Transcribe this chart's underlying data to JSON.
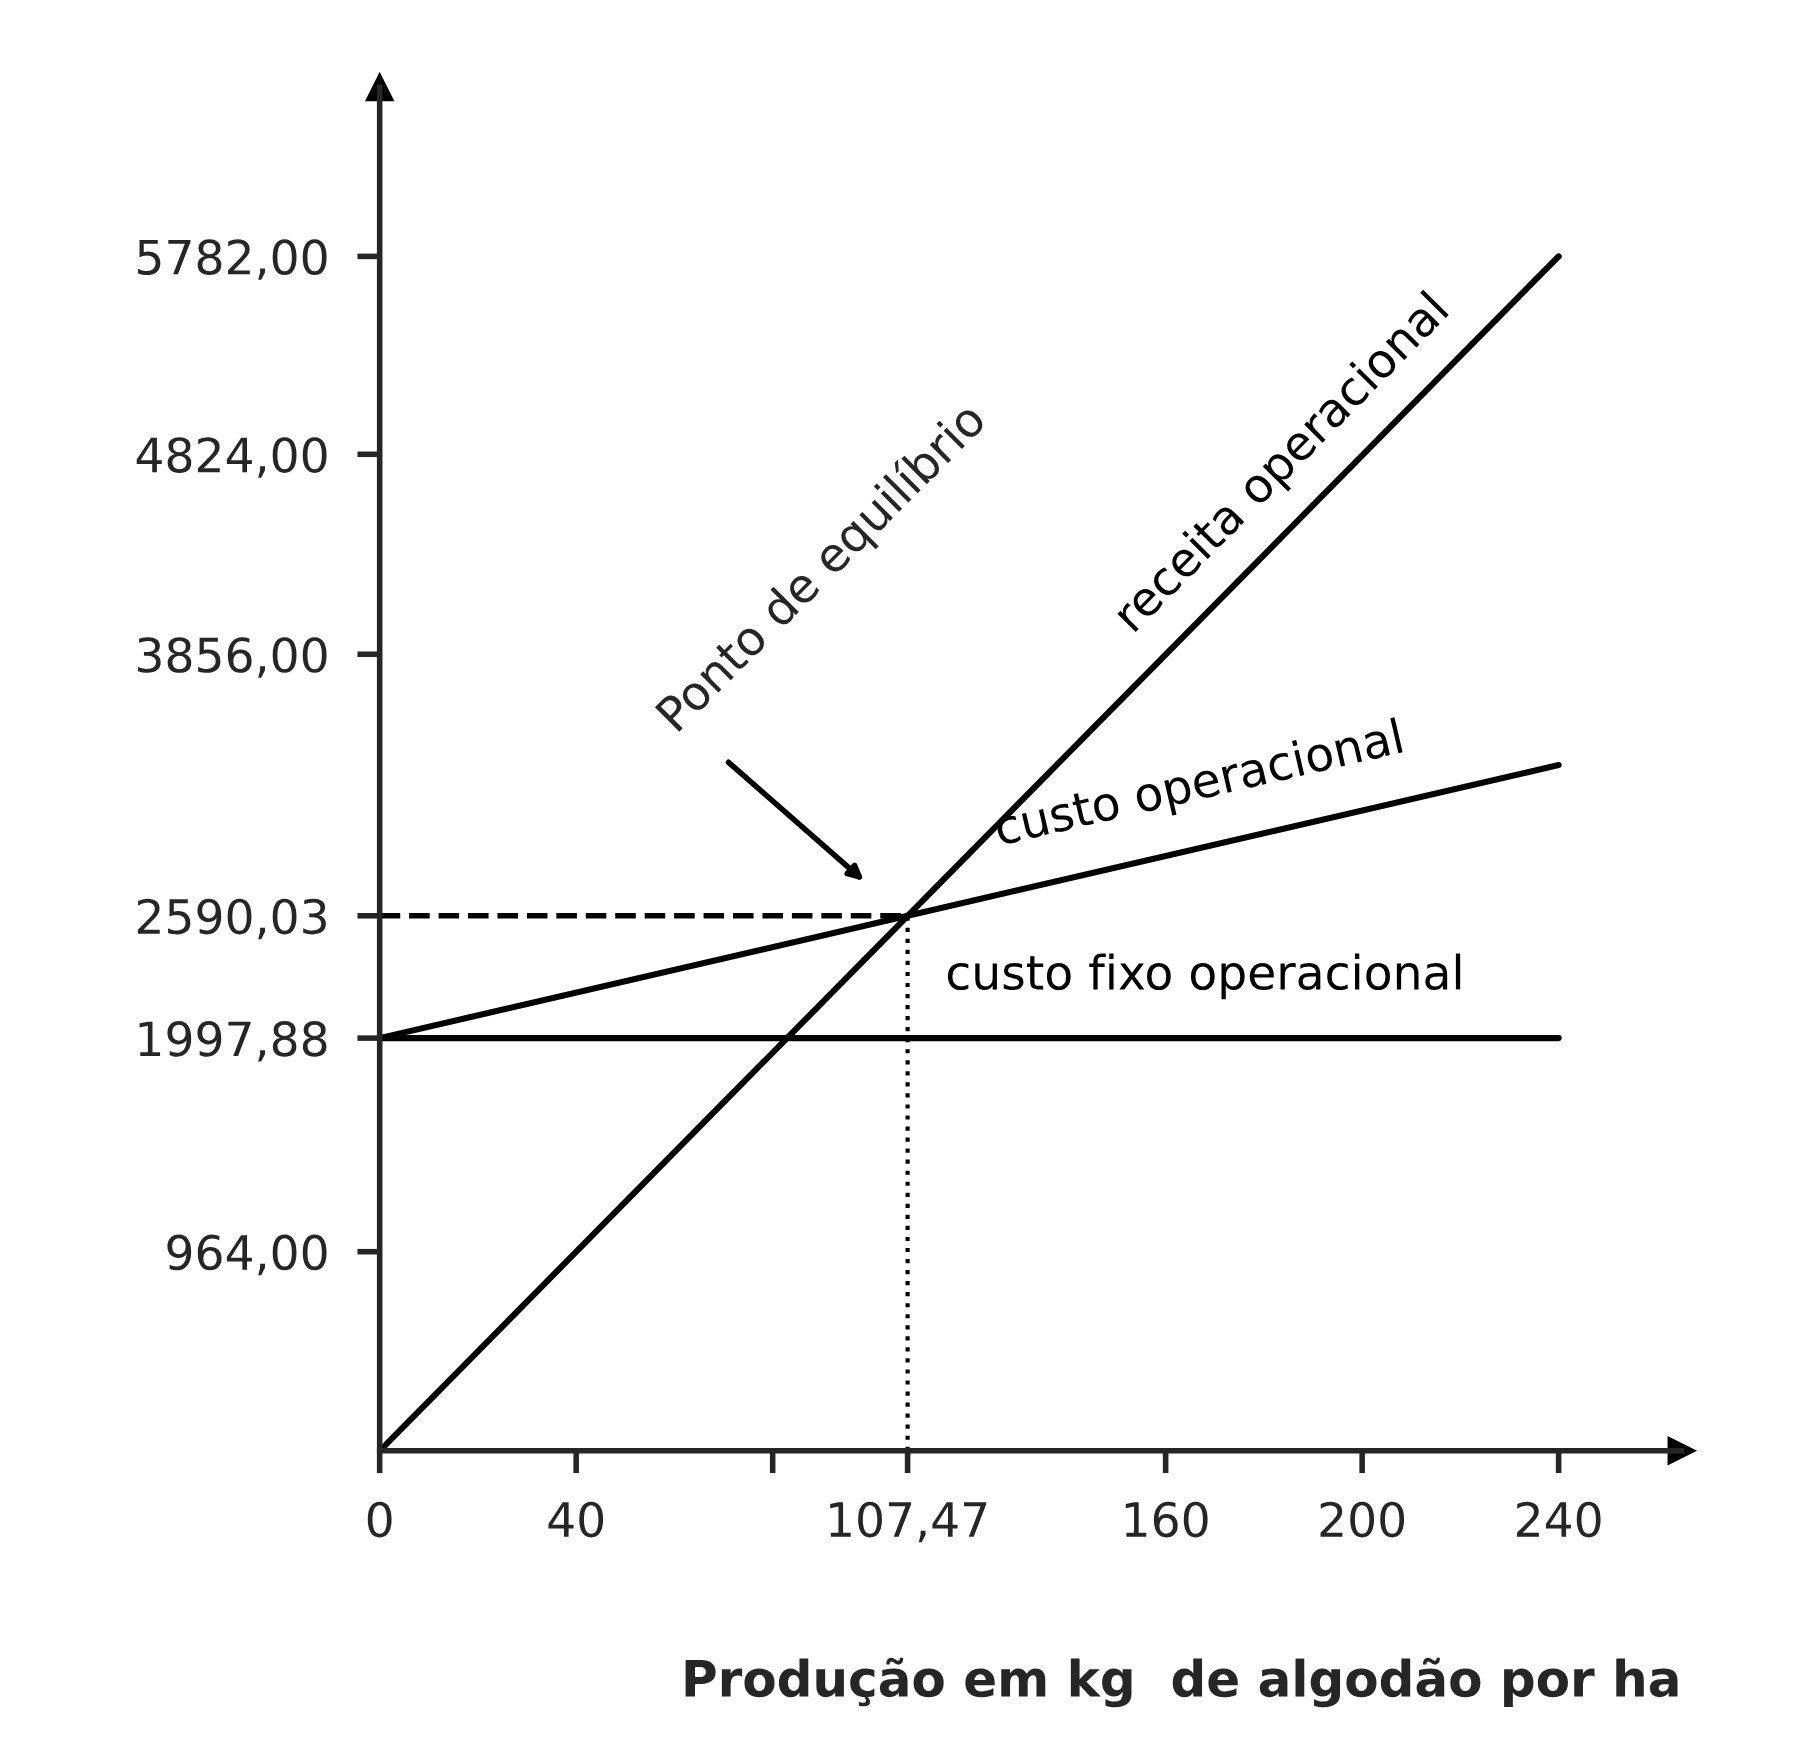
{
  "chart_data": {
    "type": "line",
    "xlabel": "Produção em kg  de algodão por ha",
    "xlim": [
      0,
      265
    ],
    "ylim": [
      0,
      6600
    ],
    "xticks": [
      0,
      40,
      {
        "value": 80,
        "label": null
      },
      {
        "value": 107.47,
        "label": "107,47"
      },
      160,
      200,
      240
    ],
    "yticks": [
      {
        "value": 964,
        "label": "964,00"
      },
      {
        "value": 1997.88,
        "label": "1997,88"
      },
      {
        "value": 2590.03,
        "label": "2590,03"
      },
      {
        "value": 3856,
        "label": "3856,00"
      },
      {
        "value": 4824,
        "label": "4824,00"
      },
      {
        "value": 5782,
        "label": "5782,00"
      }
    ],
    "x": [
      0,
      240
    ],
    "series": [
      {
        "name": "receita operacional",
        "color": "#000000",
        "values": [
          0,
          5782
        ]
      },
      {
        "name": "custo operacional",
        "color": "#000000",
        "values": [
          1997.88,
          3320
        ]
      },
      {
        "name": "custo fixo operacional",
        "color": "#000000",
        "values": [
          1997.88,
          1997.88
        ]
      }
    ],
    "ref_lines": [
      {
        "axis": "y",
        "value": 2590.03,
        "line_style": "dashed",
        "color": "#000000"
      },
      {
        "axis": "x",
        "value": 107.47,
        "line_style": "dotted",
        "color": "#000000"
      }
    ],
    "annotations": [
      "Ponto de equilíbrio"
    ],
    "grid": false,
    "legend": false,
    "marker": "none",
    "line_style": "solid"
  }
}
